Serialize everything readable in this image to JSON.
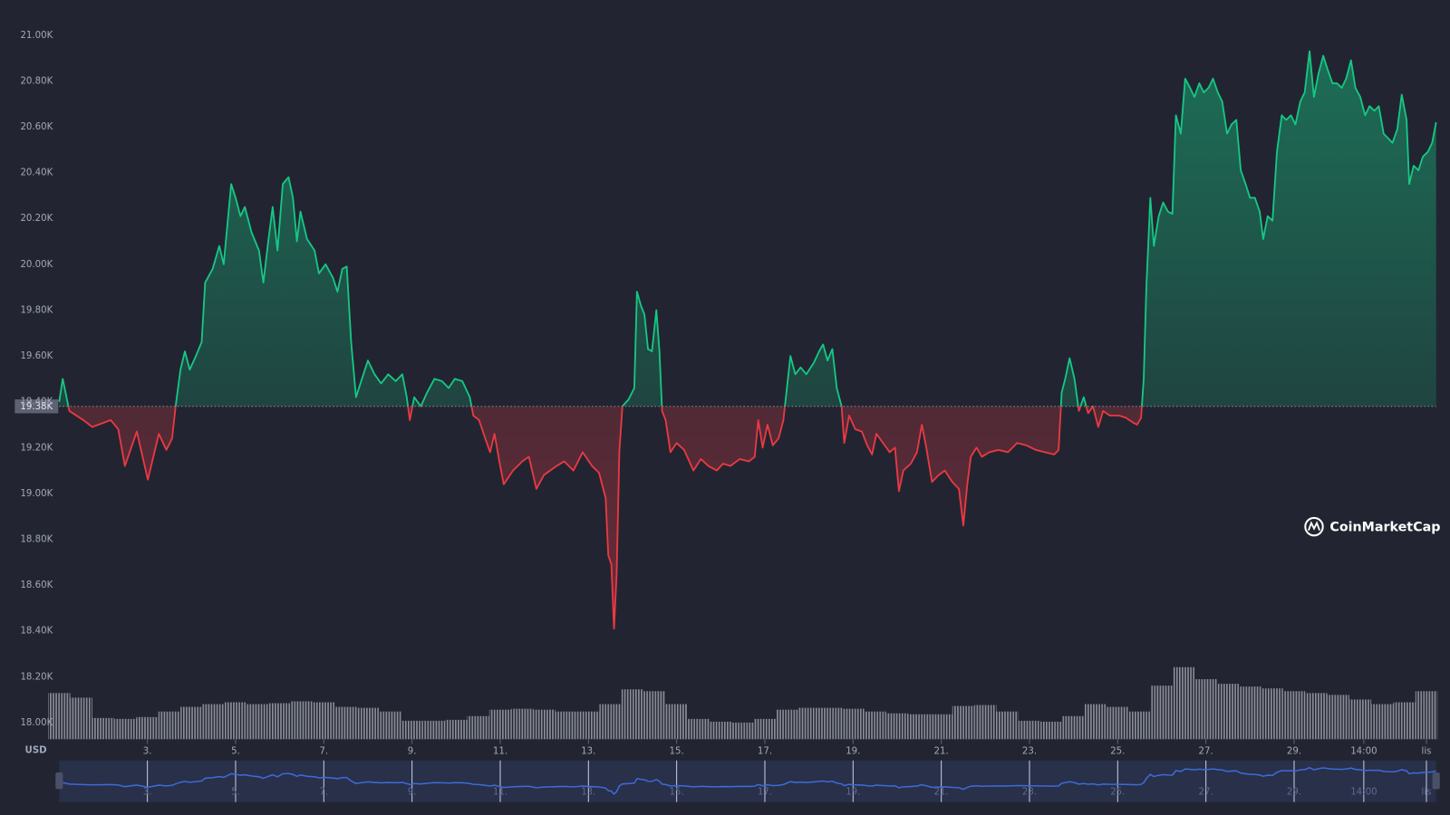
{
  "chart_data": {
    "type": "line",
    "currency": "USD",
    "watermark": "CoinMarketCap",
    "baseline": {
      "value": 19380,
      "label": "19.38K"
    },
    "colors": {
      "up": "#16c784",
      "down": "#ea3943",
      "volume": "#8c8f99",
      "navigator": "#3d6ad6"
    },
    "xlim": [
      1,
      32.22
    ],
    "ylim": [
      18000,
      21000
    ],
    "grid": false,
    "yticks": [
      {
        "value": 18000,
        "label": "18.00K"
      },
      {
        "value": 18200,
        "label": "18.20K"
      },
      {
        "value": 18400,
        "label": "18.40K"
      },
      {
        "value": 18600,
        "label": "18.60K"
      },
      {
        "value": 18800,
        "label": "18.80K"
      },
      {
        "value": 19000,
        "label": "19.00K"
      },
      {
        "value": 19200,
        "label": "19.20K"
      },
      {
        "value": 19400,
        "label": "19.40K"
      },
      {
        "value": 19600,
        "label": "19.60K"
      },
      {
        "value": 19800,
        "label": "19.80K"
      },
      {
        "value": 20000,
        "label": "20.00K"
      },
      {
        "value": 20200,
        "label": "20.20K"
      },
      {
        "value": 20400,
        "label": "20.40K"
      },
      {
        "value": 20600,
        "label": "20.60K"
      },
      {
        "value": 20800,
        "label": "20.80K"
      },
      {
        "value": 21000,
        "label": "21.00K"
      }
    ],
    "xticks": [
      {
        "value": 3,
        "label": "3."
      },
      {
        "value": 5,
        "label": "5."
      },
      {
        "value": 7,
        "label": "7."
      },
      {
        "value": 9,
        "label": "9."
      },
      {
        "value": 11,
        "label": "11."
      },
      {
        "value": 13,
        "label": "13."
      },
      {
        "value": 15,
        "label": "15."
      },
      {
        "value": 17,
        "label": "17."
      },
      {
        "value": 19,
        "label": "19."
      },
      {
        "value": 21,
        "label": "21."
      },
      {
        "value": 23,
        "label": "23."
      },
      {
        "value": 25,
        "label": "25."
      },
      {
        "value": 27,
        "label": "27."
      },
      {
        "value": 29,
        "label": "29."
      },
      {
        "value": 30.58,
        "label": "14:00"
      },
      {
        "value": 32,
        "label": "lis"
      }
    ],
    "x": [
      1.0,
      1.08,
      1.23,
      1.55,
      1.75,
      2.17,
      2.34,
      2.49,
      2.76,
      3.01,
      3.26,
      3.43,
      3.56,
      3.64,
      3.75,
      3.85,
      3.96,
      4.1,
      4.23,
      4.31,
      4.48,
      4.63,
      4.73,
      4.9,
      5.0,
      5.11,
      5.21,
      5.36,
      5.53,
      5.63,
      5.74,
      5.84,
      5.95,
      6.07,
      6.2,
      6.3,
      6.39,
      6.47,
      6.62,
      6.79,
      6.89,
      7.04,
      7.21,
      7.31,
      7.42,
      7.52,
      7.62,
      7.73,
      7.83,
      8.0,
      8.15,
      8.3,
      8.46,
      8.63,
      8.78,
      8.88,
      8.95,
      9.05,
      9.2,
      9.34,
      9.51,
      9.68,
      9.83,
      9.97,
      10.14,
      10.31,
      10.39,
      10.52,
      10.66,
      10.77,
      10.87,
      10.98,
      11.08,
      11.29,
      11.5,
      11.65,
      11.82,
      11.99,
      12.13,
      12.28,
      12.45,
      12.66,
      12.87,
      13.08,
      13.24,
      13.39,
      13.45,
      13.52,
      13.58,
      13.64,
      13.7,
      13.77,
      13.91,
      14.04,
      14.1,
      14.19,
      14.27,
      14.35,
      14.44,
      14.54,
      14.61,
      14.67,
      14.75,
      14.86,
      15.0,
      15.17,
      15.38,
      15.55,
      15.72,
      15.91,
      16.05,
      16.22,
      16.43,
      16.64,
      16.77,
      16.85,
      16.95,
      17.06,
      17.18,
      17.31,
      17.42,
      17.5,
      17.58,
      17.69,
      17.81,
      17.94,
      18.11,
      18.23,
      18.32,
      18.42,
      18.53,
      18.63,
      18.74,
      18.8,
      18.91,
      19.05,
      19.2,
      19.32,
      19.43,
      19.53,
      19.68,
      19.83,
      19.95,
      20.04,
      20.14,
      20.31,
      20.45,
      20.56,
      20.66,
      20.79,
      20.94,
      21.08,
      21.25,
      21.4,
      21.5,
      21.59,
      21.67,
      21.8,
      21.92,
      22.09,
      22.3,
      22.51,
      22.72,
      22.93,
      23.14,
      23.35,
      23.56,
      23.66,
      23.73,
      23.81,
      23.91,
      24.02,
      24.12,
      24.23,
      24.33,
      24.44,
      24.56,
      24.67,
      24.82,
      25.03,
      25.19,
      25.34,
      25.44,
      25.53,
      25.59,
      25.65,
      25.74,
      25.82,
      25.93,
      26.03,
      26.14,
      26.24,
      26.32,
      26.43,
      26.53,
      26.64,
      26.74,
      26.85,
      26.95,
      27.06,
      27.16,
      27.27,
      27.37,
      27.48,
      27.58,
      27.69,
      27.79,
      27.9,
      28.0,
      28.11,
      28.22,
      28.3,
      28.4,
      28.51,
      28.61,
      28.72,
      28.82,
      28.93,
      29.03,
      29.14,
      29.24,
      29.35,
      29.45,
      29.55,
      29.66,
      29.76,
      29.87,
      29.97,
      30.08,
      30.18,
      30.29,
      30.39,
      30.5,
      30.61,
      30.71,
      30.82,
      30.92,
      31.03,
      31.13,
      31.23,
      31.34,
      31.44,
      31.55,
      31.61,
      31.71,
      31.82,
      31.92,
      32.03,
      32.13,
      32.22
    ],
    "values": [
      19400,
      19500,
      19360,
      19320,
      19290,
      19320,
      19280,
      19120,
      19270,
      19060,
      19260,
      19190,
      19240,
      19380,
      19540,
      19620,
      19540,
      19600,
      19660,
      19920,
      19980,
      20080,
      20000,
      20350,
      20290,
      20210,
      20250,
      20140,
      20060,
      19920,
      20100,
      20250,
      20060,
      20350,
      20380,
      20290,
      20100,
      20230,
      20110,
      20060,
      19960,
      20000,
      19940,
      19880,
      19980,
      19990,
      19660,
      19420,
      19480,
      19580,
      19520,
      19480,
      19520,
      19490,
      19520,
      19420,
      19320,
      19420,
      19380,
      19440,
      19500,
      19490,
      19460,
      19500,
      19490,
      19420,
      19340,
      19320,
      19240,
      19180,
      19260,
      19140,
      19040,
      19100,
      19140,
      19160,
      19020,
      19080,
      19100,
      19120,
      19140,
      19100,
      19180,
      19120,
      19090,
      18980,
      18730,
      18690,
      18410,
      18650,
      19180,
      19380,
      19410,
      19460,
      19880,
      19820,
      19780,
      19630,
      19620,
      19800,
      19620,
      19360,
      19320,
      19180,
      19220,
      19190,
      19100,
      19150,
      19120,
      19100,
      19130,
      19120,
      19150,
      19140,
      19160,
      19320,
      19200,
      19300,
      19210,
      19240,
      19320,
      19460,
      19600,
      19520,
      19550,
      19520,
      19570,
      19620,
      19650,
      19580,
      19630,
      19460,
      19380,
      19220,
      19340,
      19280,
      19270,
      19210,
      19170,
      19260,
      19220,
      19180,
      19200,
      19010,
      19100,
      19130,
      19180,
      19300,
      19200,
      19050,
      19080,
      19100,
      19050,
      19020,
      18860,
      19040,
      19160,
      19200,
      19160,
      19180,
      19190,
      19180,
      19220,
      19210,
      19190,
      19180,
      19170,
      19190,
      19440,
      19500,
      19590,
      19500,
      19360,
      19420,
      19350,
      19380,
      19290,
      19360,
      19340,
      19340,
      19330,
      19310,
      19300,
      19330,
      19500,
      19900,
      20290,
      20080,
      20210,
      20270,
      20230,
      20220,
      20650,
      20570,
      20810,
      20770,
      20730,
      20790,
      20750,
      20770,
      20810,
      20750,
      20710,
      20570,
      20610,
      20630,
      20410,
      20350,
      20290,
      20290,
      20230,
      20110,
      20210,
      20190,
      20490,
      20650,
      20630,
      20650,
      20610,
      20710,
      20750,
      20930,
      20730,
      20830,
      20910,
      20850,
      20790,
      20790,
      20770,
      20810,
      20890,
      20770,
      20730,
      20650,
      20690,
      20670,
      20690,
      20570,
      20550,
      20530,
      20590,
      20740,
      20630,
      20350,
      20430,
      20410,
      20470,
      20490,
      20530,
      20620
    ],
    "volume": {
      "x": [
        1,
        1.5,
        2,
        2.5,
        3,
        3.5,
        4,
        4.5,
        5,
        5.5,
        6,
        6.5,
        7,
        7.5,
        8,
        8.5,
        9,
        9.5,
        10,
        10.5,
        11,
        11.5,
        12,
        12.5,
        13,
        13.5,
        14,
        14.5,
        15,
        15.5,
        16,
        16.5,
        17,
        17.5,
        18,
        18.5,
        19,
        19.5,
        20,
        20.5,
        21,
        21.5,
        22,
        22.5,
        23,
        23.5,
        24,
        24.5,
        25,
        25.5,
        26,
        26.5,
        27,
        27.5,
        28,
        28.5,
        29,
        29.5,
        30,
        30.5,
        31,
        31.5,
        32
      ],
      "values": [
        50,
        45,
        23,
        22,
        24,
        30,
        35,
        38,
        40,
        38,
        39,
        41,
        40,
        35,
        34,
        30,
        20,
        20,
        21,
        25,
        32,
        33,
        32,
        30,
        30,
        38,
        54,
        52,
        38,
        22,
        19,
        18,
        22,
        32,
        34,
        34,
        33,
        30,
        28,
        27,
        27,
        36,
        37,
        30,
        20,
        19,
        25,
        38,
        35,
        30,
        58,
        78,
        65,
        60,
        57,
        55,
        52,
        50,
        48,
        43,
        38,
        40,
        52
      ]
    }
  }
}
